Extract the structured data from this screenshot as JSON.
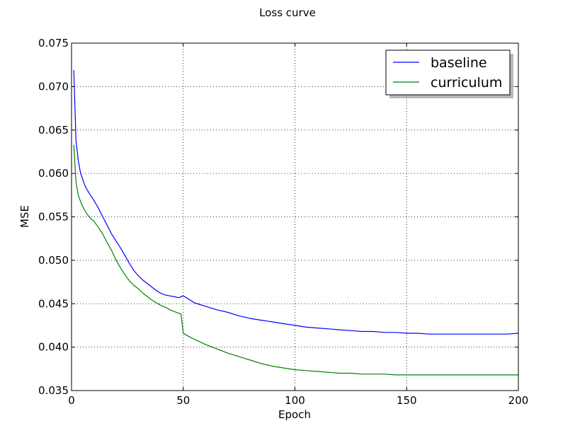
{
  "chart_data": {
    "type": "line",
    "title": "Loss curve",
    "xlabel": "Epoch",
    "ylabel": "MSE",
    "xlim": [
      0,
      200
    ],
    "ylim": [
      0.035,
      0.075
    ],
    "xticks": [
      0,
      50,
      100,
      150,
      200
    ],
    "yticks": [
      0.035,
      0.04,
      0.045,
      0.05,
      0.055,
      0.06,
      0.065,
      0.07,
      0.075
    ],
    "xtick_labels": [
      "0",
      "50",
      "100",
      "150",
      "200"
    ],
    "ytick_labels": [
      "0.035",
      "0.040",
      "0.045",
      "0.050",
      "0.055",
      "0.060",
      "0.065",
      "0.070",
      "0.075"
    ],
    "grid": true,
    "legend_position": "top-right",
    "series": [
      {
        "name": "baseline",
        "color": "#0000ff",
        "x": [
          1,
          2,
          3,
          4,
          5,
          6,
          7,
          8,
          9,
          10,
          12,
          14,
          16,
          18,
          20,
          22,
          24,
          26,
          28,
          30,
          32,
          34,
          36,
          38,
          40,
          42,
          44,
          46,
          48,
          50,
          52,
          55,
          60,
          65,
          70,
          75,
          80,
          85,
          90,
          95,
          100,
          105,
          110,
          115,
          120,
          125,
          130,
          135,
          140,
          145,
          150,
          155,
          160,
          165,
          170,
          175,
          180,
          185,
          190,
          195,
          200
        ],
        "y": [
          0.0719,
          0.0638,
          0.0615,
          0.0601,
          0.0593,
          0.0586,
          0.0581,
          0.0577,
          0.0573,
          0.0569,
          0.056,
          0.055,
          0.054,
          0.053,
          0.0522,
          0.0514,
          0.0505,
          0.0496,
          0.0488,
          0.0482,
          0.0477,
          0.0473,
          0.0469,
          0.0465,
          0.0462,
          0.046,
          0.0459,
          0.0458,
          0.0457,
          0.0459,
          0.0456,
          0.0451,
          0.0447,
          0.0443,
          0.044,
          0.0436,
          0.0433,
          0.0431,
          0.0429,
          0.0427,
          0.0425,
          0.0423,
          0.0422,
          0.0421,
          0.042,
          0.0419,
          0.0418,
          0.0418,
          0.0417,
          0.0417,
          0.0416,
          0.0416,
          0.0415,
          0.0415,
          0.0415,
          0.0415,
          0.0415,
          0.0415,
          0.0415,
          0.0415,
          0.0416
        ]
      },
      {
        "name": "curriculum",
        "color": "#008000",
        "x": [
          1,
          2,
          3,
          4,
          5,
          6,
          7,
          8,
          9,
          10,
          12,
          14,
          16,
          18,
          20,
          22,
          24,
          26,
          28,
          30,
          32,
          34,
          36,
          38,
          40,
          42,
          44,
          46,
          48,
          49,
          50,
          52,
          55,
          60,
          65,
          70,
          75,
          80,
          85,
          90,
          95,
          100,
          105,
          110,
          115,
          120,
          125,
          130,
          135,
          140,
          145,
          150,
          155,
          160,
          165,
          170,
          175,
          180,
          185,
          190,
          195,
          200
        ],
        "y": [
          0.0633,
          0.059,
          0.0575,
          0.0568,
          0.0562,
          0.0557,
          0.0553,
          0.055,
          0.0547,
          0.0545,
          0.0538,
          0.053,
          0.052,
          0.0511,
          0.05,
          0.0491,
          0.0483,
          0.0476,
          0.0471,
          0.0467,
          0.0462,
          0.0458,
          0.0454,
          0.0451,
          0.0448,
          0.0446,
          0.0443,
          0.0441,
          0.0439,
          0.0438,
          0.0416,
          0.0413,
          0.0409,
          0.0403,
          0.0398,
          0.0393,
          0.0389,
          0.0385,
          0.0381,
          0.0378,
          0.0376,
          0.0374,
          0.0373,
          0.0372,
          0.0371,
          0.037,
          0.037,
          0.0369,
          0.0369,
          0.0369,
          0.0368,
          0.0368,
          0.0368,
          0.0368,
          0.0368,
          0.0368,
          0.0368,
          0.0368,
          0.0368,
          0.0368,
          0.0368,
          0.0368
        ]
      }
    ]
  }
}
